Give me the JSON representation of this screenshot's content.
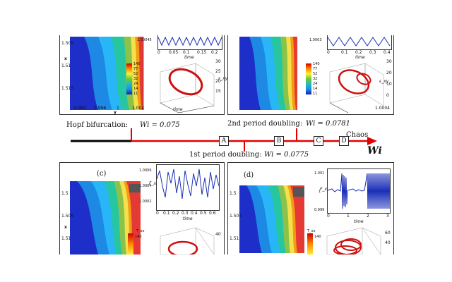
{
  "figure": {
    "timeline": {
      "hopf": "Hopf bifurcation:",
      "hopf_value": "Wi = 0.075",
      "pd1": "1st period doubling:",
      "pd1_value": "Wi = 0.0775",
      "pd2": "2nd period doubling:",
      "pd2_value": "Wi = 0.0781",
      "chaos": "Chaos",
      "axis": "Wi",
      "markers": [
        "A",
        "B",
        "C",
        "D"
      ]
    },
    "panel_a": {
      "y_ticks": [
        "1.505",
        "1.51",
        "1.515"
      ],
      "x_ticks": [
        "0.992",
        "0.996",
        "1",
        "1.004"
      ],
      "y_label": "x",
      "x_label": "y",
      "ts_value": "1.00045",
      "ts_ticks": [
        "0",
        "0.05",
        "0.1",
        "0.15",
        "0.2"
      ],
      "ts_xlabel": "time",
      "legend_ticks": [
        "140",
        "77",
        "52",
        "32",
        "24",
        "14",
        "11"
      ],
      "z_ticks": [
        "30",
        "25",
        "20",
        "15"
      ],
      "z_label": "ε_xy",
      "t_label": "time"
    },
    "panel_b": {
      "ts_value": "1.0003",
      "ts_ticks": [
        "0",
        "0.1",
        "0.2",
        "0.3",
        "0.4"
      ],
      "ts_xlabel": "time",
      "legend_ticks": [
        "140",
        "77",
        "52",
        "32",
        "24",
        "14",
        "11"
      ],
      "z_ticks": [
        "30",
        "20",
        "10",
        "0"
      ],
      "z_label": "ε_xy",
      "side_label": "1.0004"
    },
    "panel_c": {
      "label": "(c)",
      "y_ticks": [
        "1.5",
        "1.505",
        "1.51"
      ],
      "y_label": "x",
      "ts_ylabel": "F_x",
      "ts_yticks": [
        "1.0006",
        "1.0004",
        "1.0002"
      ],
      "ts_xticks": [
        "0",
        "0.1",
        "0.2",
        "0.3",
        "0.4",
        "0.5",
        "0.6"
      ],
      "ts_xlabel": "time",
      "legend_title": "T_xx",
      "legend_ticks": [
        "140"
      ],
      "z_ticks": [
        "40"
      ]
    },
    "panel_d": {
      "label": "(d)",
      "y_ticks": [
        "1.5",
        "1.505",
        "1.51"
      ],
      "ts_ylabel": "F_x",
      "ts_yticks": [
        "1.001",
        "1",
        "0.999"
      ],
      "ts_xticks": [
        "0",
        "1",
        "2",
        "3"
      ],
      "ts_xlabel": "time",
      "legend_title": "T_xx",
      "legend_ticks": [
        "140"
      ],
      "z_ticks": [
        "60",
        "40"
      ]
    },
    "colors": {
      "timeline": "#e00000",
      "orbit": "#cc1010",
      "signal": "#1a2fb8"
    }
  }
}
